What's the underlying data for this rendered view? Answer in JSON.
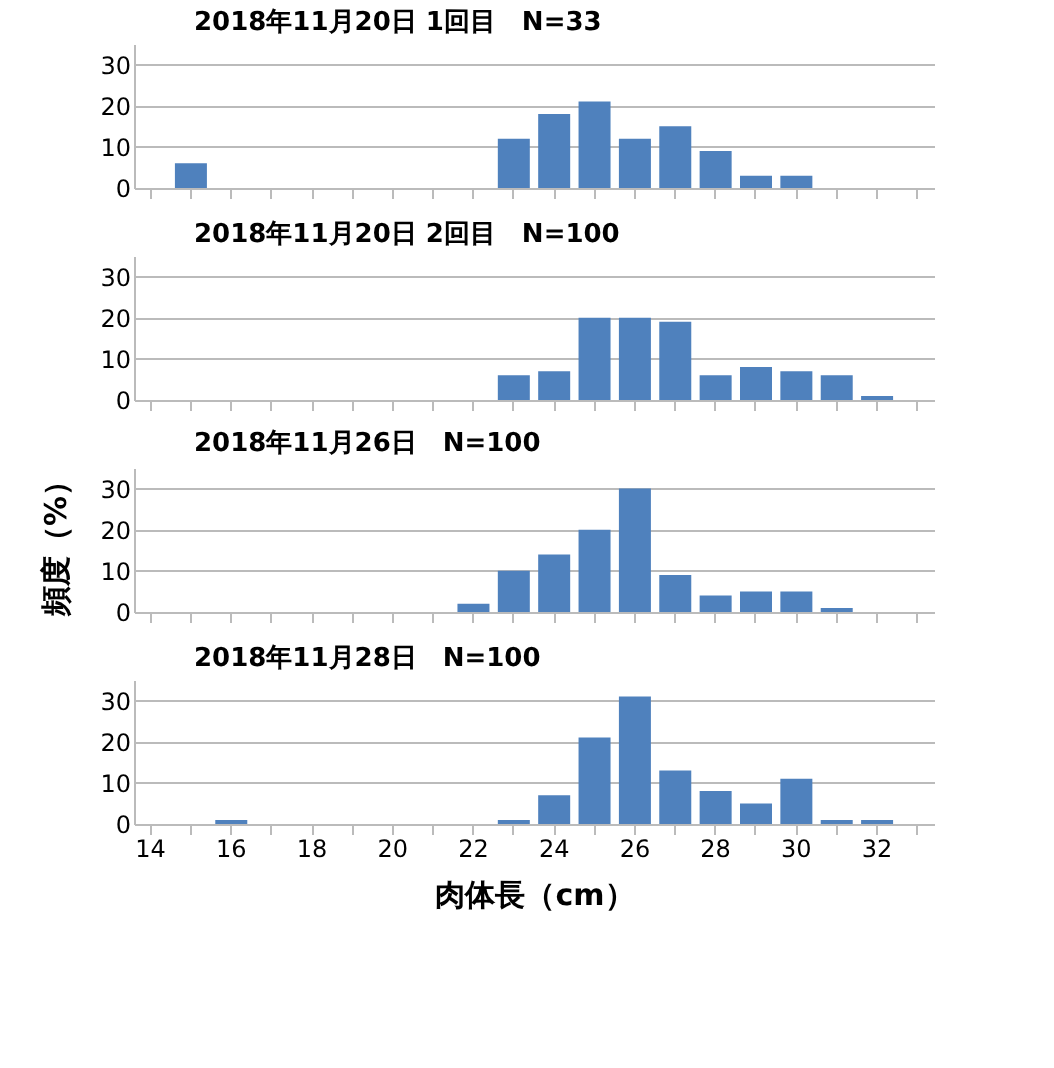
{
  "chart_data": [
    {
      "type": "bar",
      "title": "2018年11月20日 1回目　N=33",
      "categories": [
        "14",
        null,
        "16",
        null,
        "18",
        null,
        "20",
        null,
        "22",
        null,
        "24",
        null,
        "26",
        null,
        "28",
        null,
        "30",
        null,
        "32",
        null
      ],
      "color": "#4f81bd",
      "values": [
        0,
        6,
        0,
        0,
        0,
        0,
        0,
        0,
        0,
        12,
        18,
        21,
        12,
        15,
        9,
        3,
        3,
        0,
        0,
        0
      ],
      "ylim": [
        0,
        35
      ],
      "yticks": [
        0,
        10,
        20,
        30
      ],
      "grid": "y",
      "tick_labels": "y"
    },
    {
      "type": "bar",
      "title": "2018年11月20日 2回目　N=100",
      "categories": [
        "14",
        null,
        "16",
        null,
        "18",
        null,
        "20",
        null,
        "22",
        null,
        "24",
        null,
        "26",
        null,
        "28",
        null,
        "30",
        null,
        "32",
        null
      ],
      "color": "#4f81bd",
      "values": [
        0,
        0,
        0,
        0,
        0,
        0,
        0,
        0,
        0,
        6,
        7,
        20,
        20,
        19,
        6,
        8,
        7,
        6,
        1,
        0
      ],
      "ylim": [
        0,
        35
      ],
      "yticks": [
        0,
        10,
        20,
        30
      ],
      "grid": "y",
      "tick_labels": "y"
    },
    {
      "type": "bar",
      "title": "2018年11月26日　N=100",
      "ylabel": "頻度（%）",
      "categories": [
        "14",
        null,
        "16",
        null,
        "18",
        null,
        "20",
        null,
        "22",
        null,
        "24",
        null,
        "26",
        null,
        "28",
        null,
        "30",
        null,
        "32",
        null
      ],
      "color": "#4f81bd",
      "values": [
        0,
        0,
        0,
        0,
        0,
        0,
        0,
        0,
        2,
        10,
        14,
        20,
        30,
        9,
        4,
        5,
        5,
        1,
        0,
        0
      ],
      "ylim": [
        0,
        35
      ],
      "yticks": [
        0,
        10,
        20,
        30
      ],
      "grid": "y",
      "tick_labels": "y"
    },
    {
      "type": "bar",
      "title": "2018年11月28日　N=100",
      "xlabel": "肉体長（cm）",
      "categories": [
        "14",
        null,
        "16",
        null,
        "18",
        null,
        "20",
        null,
        "22",
        null,
        "24",
        null,
        "26",
        null,
        "28",
        null,
        "30",
        null,
        "32",
        null
      ],
      "color": "#4f81bd",
      "values": [
        0,
        0,
        1,
        0,
        0,
        0,
        0,
        0,
        0,
        1,
        7,
        21,
        31,
        13,
        8,
        5,
        11,
        1,
        1,
        0
      ],
      "ylim": [
        0,
        35
      ],
      "yticks": [
        0,
        10,
        20,
        30
      ],
      "grid": "y"
    }
  ]
}
